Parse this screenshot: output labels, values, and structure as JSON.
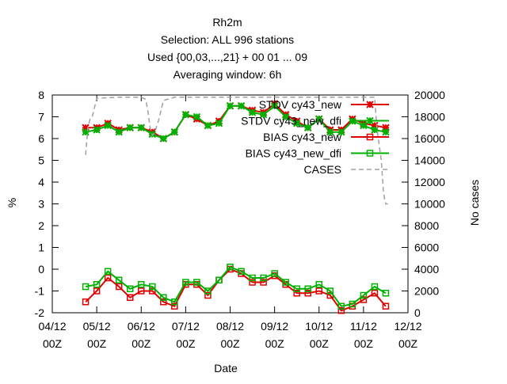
{
  "chart_data": {
    "type": "line",
    "title_lines": [
      "Rh2m",
      "Selection: ALL    996 stations",
      "Used {00,03,...,21} + 00 01 ... 09",
      "Averaging window:  6h"
    ],
    "xlabel": "Date",
    "ylabel": "%",
    "y2label": "No cases",
    "x_ticks": [
      {
        "line1": "04/12",
        "line2": "00Z"
      },
      {
        "line1": "05/12",
        "line2": "00Z"
      },
      {
        "line1": "06/12",
        "line2": "00Z"
      },
      {
        "line1": "07/12",
        "line2": "00Z"
      },
      {
        "line1": "08/12",
        "line2": "00Z"
      },
      {
        "line1": "09/12",
        "line2": "00Z"
      },
      {
        "line1": "10/12",
        "line2": "00Z"
      },
      {
        "line1": "11/12",
        "line2": "00Z"
      },
      {
        "line1": "12/12",
        "line2": "00Z"
      }
    ],
    "xlim_days": [
      0,
      8
    ],
    "ylim": [
      -2,
      8
    ],
    "y_ticks": [
      "-2",
      "-1",
      "0",
      "1",
      "2",
      "3",
      "4",
      "5",
      "6",
      "7",
      "8"
    ],
    "y2lim": [
      0,
      20000
    ],
    "y2_ticks": [
      "0",
      "2000",
      "4000",
      "6000",
      "8000",
      "10000",
      "12000",
      "14000",
      "16000",
      "18000",
      "20000"
    ],
    "grid": false,
    "legend_position": "top-right",
    "series": [
      {
        "name": "STDV cy43_new",
        "color": "#e00000",
        "marker": "x",
        "x": [
          0.75,
          1.0,
          1.25,
          1.5,
          1.75,
          2.0,
          2.25,
          2.5,
          2.75,
          3.0,
          3.25,
          3.5,
          3.75,
          4.0,
          4.25,
          4.5,
          4.75,
          5.0,
          5.25,
          5.5,
          5.75,
          6.0,
          6.25,
          6.5,
          6.75,
          7.0,
          7.25,
          7.5
        ],
        "y": [
          6.5,
          6.5,
          6.7,
          6.4,
          6.5,
          6.5,
          6.3,
          6.0,
          6.3,
          7.1,
          6.9,
          6.6,
          6.8,
          7.5,
          7.5,
          7.3,
          7.2,
          7.6,
          7.1,
          6.8,
          6.5,
          6.9,
          6.4,
          6.4,
          6.9,
          6.7,
          6.6,
          6.5
        ]
      },
      {
        "name": "STDV cy43_new_dfi",
        "color": "#00b000",
        "marker": "x",
        "x": [
          0.75,
          1.0,
          1.25,
          1.5,
          1.75,
          2.0,
          2.25,
          2.5,
          2.75,
          3.0,
          3.25,
          3.5,
          3.75,
          4.0,
          4.25,
          4.5,
          4.75,
          5.0,
          5.25,
          5.5,
          5.75,
          6.0,
          6.25,
          6.5,
          6.75,
          7.0,
          7.25,
          7.5
        ],
        "y": [
          6.3,
          6.4,
          6.6,
          6.3,
          6.5,
          6.5,
          6.2,
          6.0,
          6.3,
          7.1,
          7.0,
          6.6,
          6.7,
          7.5,
          7.5,
          7.2,
          7.1,
          7.5,
          7.0,
          6.7,
          6.5,
          6.9,
          6.3,
          6.3,
          6.8,
          6.6,
          6.4,
          6.3
        ]
      },
      {
        "name": "BIAS cy43_new",
        "color": "#e00000",
        "marker": "square",
        "x": [
          0.75,
          1.0,
          1.25,
          1.5,
          1.75,
          2.0,
          2.25,
          2.5,
          2.75,
          3.0,
          3.25,
          3.5,
          3.75,
          4.0,
          4.25,
          4.5,
          4.75,
          5.0,
          5.25,
          5.5,
          5.75,
          6.0,
          6.25,
          6.5,
          6.75,
          7.0,
          7.25,
          7.5
        ],
        "y": [
          -1.5,
          -1.0,
          -0.4,
          -0.8,
          -1.3,
          -1.0,
          -1.0,
          -1.5,
          -1.7,
          -0.7,
          -0.7,
          -1.2,
          -0.5,
          0.0,
          -0.2,
          -0.6,
          -0.6,
          -0.3,
          -0.7,
          -1.1,
          -1.1,
          -1.0,
          -1.2,
          -1.9,
          -1.7,
          -1.4,
          -1.1,
          -1.7
        ]
      },
      {
        "name": "BIAS cy43_new_dfi",
        "color": "#00b000",
        "marker": "square",
        "x": [
          0.75,
          1.0,
          1.25,
          1.5,
          1.75,
          2.0,
          2.25,
          2.5,
          2.75,
          3.0,
          3.25,
          3.5,
          3.75,
          4.0,
          4.25,
          4.5,
          4.75,
          5.0,
          5.25,
          5.5,
          5.75,
          6.0,
          6.25,
          6.5,
          6.75,
          7.0,
          7.25,
          7.5
        ],
        "y": [
          -0.8,
          -0.7,
          -0.1,
          -0.5,
          -0.9,
          -0.7,
          -0.8,
          -1.3,
          -1.5,
          -0.6,
          -0.6,
          -1.0,
          -0.5,
          0.1,
          -0.1,
          -0.4,
          -0.4,
          -0.2,
          -0.6,
          -0.9,
          -0.9,
          -0.7,
          -1.0,
          -1.7,
          -1.6,
          -1.2,
          -0.8,
          -1.1
        ]
      },
      {
        "name": "CASES",
        "color": "#a0a0a0",
        "axis": "y2",
        "dash": true,
        "x": [
          0.75,
          0.8,
          0.85,
          0.9,
          1.0,
          1.5,
          2.0,
          2.1,
          2.15,
          2.2,
          2.25,
          2.3,
          2.4,
          2.5,
          2.75,
          3.0,
          3.5,
          4.0,
          4.5,
          5.0,
          5.5,
          6.0,
          6.5,
          7.0,
          7.25,
          7.3,
          7.4,
          7.45,
          7.5,
          7.55
        ],
        "y": [
          14500,
          17000,
          17800,
          18000,
          19700,
          19800,
          19800,
          19600,
          18500,
          17000,
          16300,
          16500,
          17800,
          19500,
          19800,
          19800,
          19800,
          19800,
          19800,
          19800,
          19800,
          19800,
          19800,
          19800,
          19800,
          17000,
          14000,
          11000,
          10000,
          10000
        ]
      }
    ]
  }
}
